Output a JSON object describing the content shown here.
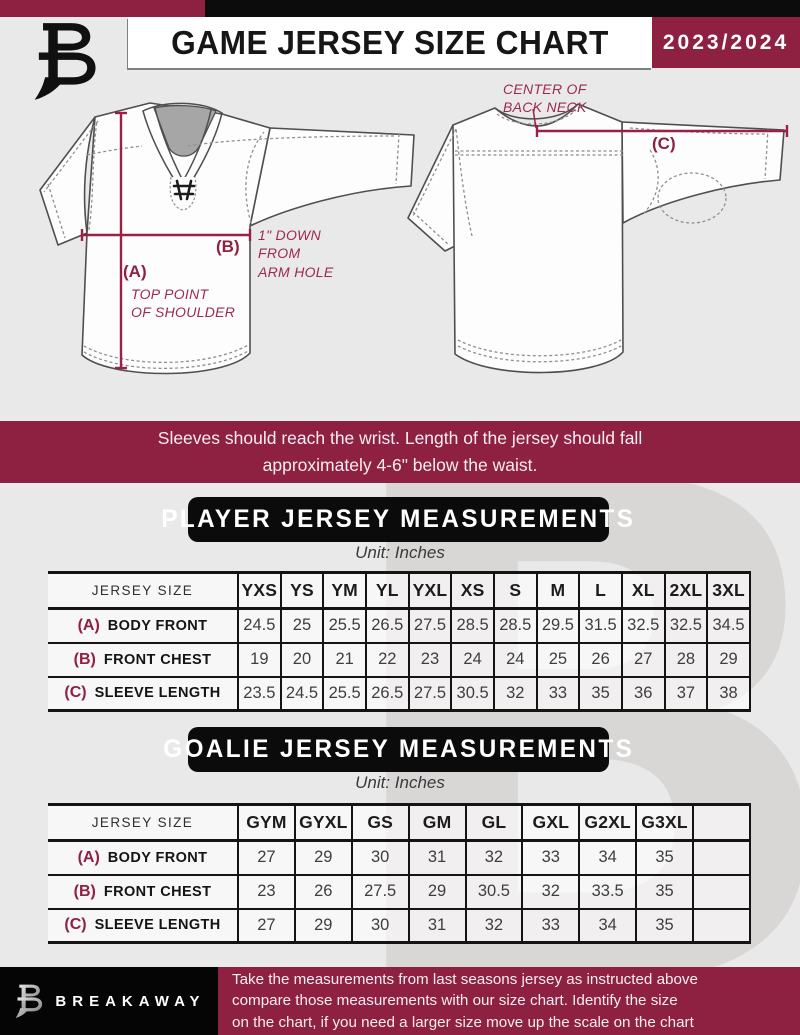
{
  "header": {
    "title": "GAME JERSEY SIZE CHART",
    "season": "2023/2024"
  },
  "diagram": {
    "front": {
      "key_a": "(A)",
      "desc_a": "TOP POINT\nOF SHOULDER",
      "key_b": "(B)",
      "desc_b": "1\" DOWN\nFROM\nARM HOLE"
    },
    "back": {
      "key_c": "(C)",
      "desc_c": "CENTER OF\nBACK NECK"
    }
  },
  "banner": {
    "text": "Sleeves should reach the wrist. Length of the jersey should fall\napproximately 4-6\" below the waist."
  },
  "player_section": {
    "title": "PLAYER JERSEY MEASUREMENTS",
    "unit": "Unit: Inches"
  },
  "goalie_section": {
    "title": "GOALIE JERSEY MEASUREMENTS",
    "unit": "Unit: Inches"
  },
  "player_table": {
    "corner_label": "JERSEY SIZE",
    "columns": [
      "YXS",
      "YS",
      "YM",
      "YL",
      "YXL",
      "XS",
      "S",
      "M",
      "L",
      "XL",
      "2XL",
      "3XL"
    ],
    "rows": [
      {
        "key": "(A)",
        "label": "BODY FRONT",
        "values": [
          "24.5",
          "25",
          "25.5",
          "26.5",
          "27.5",
          "28.5",
          "28.5",
          "29.5",
          "31.5",
          "32.5",
          "32.5",
          "34.5"
        ]
      },
      {
        "key": "(B)",
        "label": "FRONT CHEST",
        "values": [
          "19",
          "20",
          "21",
          "22",
          "23",
          "24",
          "24",
          "25",
          "26",
          "27",
          "28",
          "29"
        ]
      },
      {
        "key": "(C)",
        "label": "SLEEVE LENGTH",
        "values": [
          "23.5",
          "24.5",
          "25.5",
          "26.5",
          "27.5",
          "30.5",
          "32",
          "33",
          "35",
          "36",
          "37",
          "38"
        ]
      }
    ]
  },
  "goalie_table": {
    "corner_label": "JERSEY SIZE",
    "columns": [
      "GYM",
      "GYXL",
      "GS",
      "GM",
      "GL",
      "GXL",
      "G2XL",
      "G3XL",
      ""
    ],
    "rows": [
      {
        "key": "(A)",
        "label": "BODY FRONT",
        "values": [
          "27",
          "29",
          "30",
          "31",
          "32",
          "33",
          "34",
          "35",
          ""
        ]
      },
      {
        "key": "(B)",
        "label": "FRONT CHEST",
        "values": [
          "23",
          "26",
          "27.5",
          "29",
          "30.5",
          "32",
          "33.5",
          "35",
          ""
        ]
      },
      {
        "key": "(C)",
        "label": "SLEEVE LENGTH",
        "values": [
          "27",
          "29",
          "30",
          "31",
          "32",
          "33",
          "34",
          "35",
          ""
        ]
      }
    ]
  },
  "footer": {
    "brand": "BREAKAWAY",
    "text": "Take the measurements from last seasons jersey as instructed above\ncompare those measurements  with our size chart. Identify the size\non the chart, if you need a larger size move up the scale on the chart"
  },
  "watermark": "B",
  "colors": {
    "maroon": "#8e2042",
    "black": "#0b0b0b",
    "background": "#eae9e9"
  }
}
